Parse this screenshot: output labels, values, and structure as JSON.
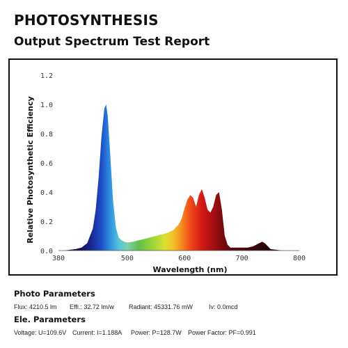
{
  "header": {
    "title": "PHOTOSYNTHESIS",
    "subtitle": "Output Spectrum Test Report"
  },
  "chart_data": {
    "type": "area",
    "title": "",
    "xlabel": "Wavelength (nm)",
    "ylabel": "Relative Photosynthetic Efficiency",
    "xlim": [
      380,
      800
    ],
    "ylim": [
      0,
      1.2
    ],
    "x_ticks": [
      380,
      500,
      600,
      700,
      800
    ],
    "y_ticks": [
      "0.0",
      "0.2",
      "0.4",
      "0.6",
      "0.8",
      "1.0",
      "1.2"
    ],
    "grid": false,
    "legend": "none",
    "fill": "visible-spectrum gradient",
    "series": [
      {
        "x": [
          390,
          400,
          410,
          420,
          430,
          440,
          445,
          450,
          455,
          460,
          463,
          466,
          470,
          475,
          480,
          485,
          490,
          495,
          500,
          510,
          520,
          530,
          540,
          550,
          560,
          570,
          580,
          590,
          595,
          600,
          605,
          610,
          615,
          620,
          625,
          630,
          635,
          640,
          645,
          650,
          655,
          660,
          665,
          670,
          675,
          680,
          690,
          700,
          710,
          720,
          730,
          735,
          740,
          745,
          750,
          760,
          770,
          780
        ],
        "y": [
          0.0,
          0.005,
          0.01,
          0.02,
          0.05,
          0.15,
          0.28,
          0.5,
          0.78,
          0.97,
          1.0,
          0.92,
          0.68,
          0.35,
          0.16,
          0.09,
          0.07,
          0.06,
          0.055,
          0.06,
          0.07,
          0.08,
          0.09,
          0.1,
          0.11,
          0.12,
          0.14,
          0.18,
          0.22,
          0.29,
          0.35,
          0.38,
          0.36,
          0.3,
          0.38,
          0.42,
          0.36,
          0.28,
          0.26,
          0.3,
          0.38,
          0.4,
          0.28,
          0.1,
          0.04,
          0.02,
          0.02,
          0.02,
          0.02,
          0.03,
          0.05,
          0.06,
          0.05,
          0.03,
          0.01,
          0.005,
          0.0,
          0.0
        ]
      }
    ]
  },
  "photo_params": {
    "heading": "Photo Parameters",
    "flux": "Flux: 4210.5 lm",
    "efficacy": "Effi.: 32.72 lm/w",
    "radiant": "Radiant: 45331.76 mW",
    "iv": "Iv: 0.0mcd"
  },
  "ele_params": {
    "heading": "Ele. Parameters",
    "voltage": "Voltage: U=109.6V",
    "current": "Current: I=1.188A",
    "power": "Power: P=128.7W",
    "power_factor": "Power Factor: PF=0.991"
  }
}
